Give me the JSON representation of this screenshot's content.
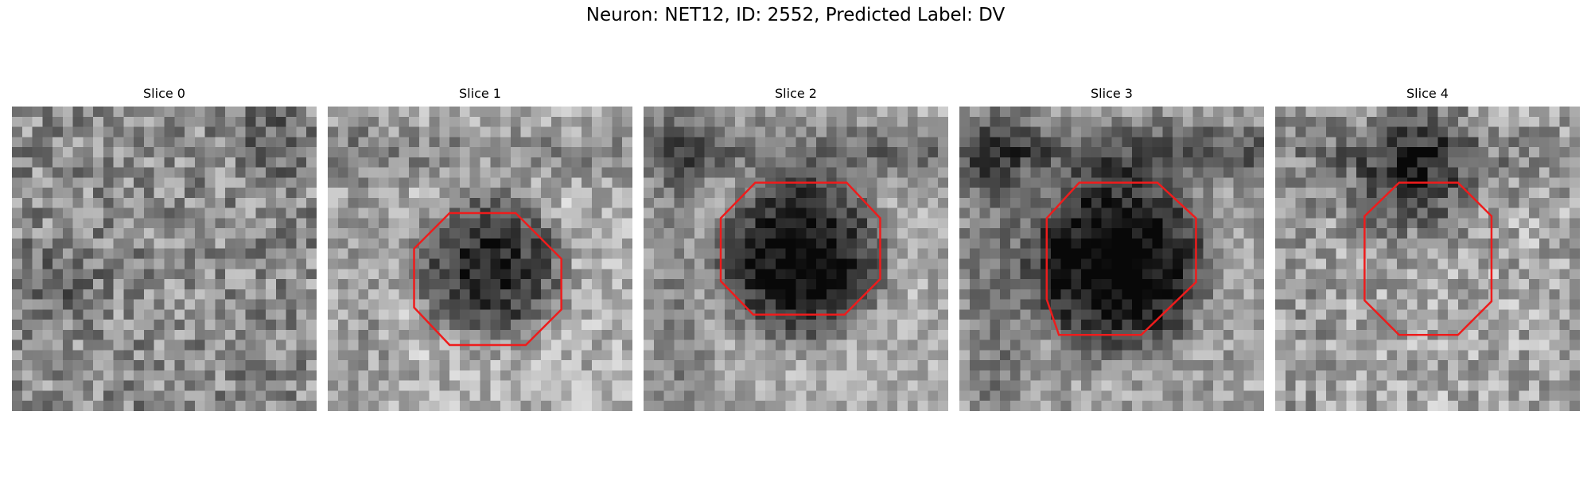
{
  "figure": {
    "title": "Neuron: NET12, ID: 2552, Predicted Label: DV"
  },
  "panels": [
    {
      "title": "Slice 0",
      "has_roi": false
    },
    {
      "title": "Slice 1",
      "has_roi": true
    },
    {
      "title": "Slice 2",
      "has_roi": true
    },
    {
      "title": "Slice 3",
      "has_roi": true
    },
    {
      "title": "Slice 4",
      "has_roi": true
    }
  ],
  "colors": {
    "roi_outline": "#ee1c1c",
    "colormap": "grayscale"
  }
}
